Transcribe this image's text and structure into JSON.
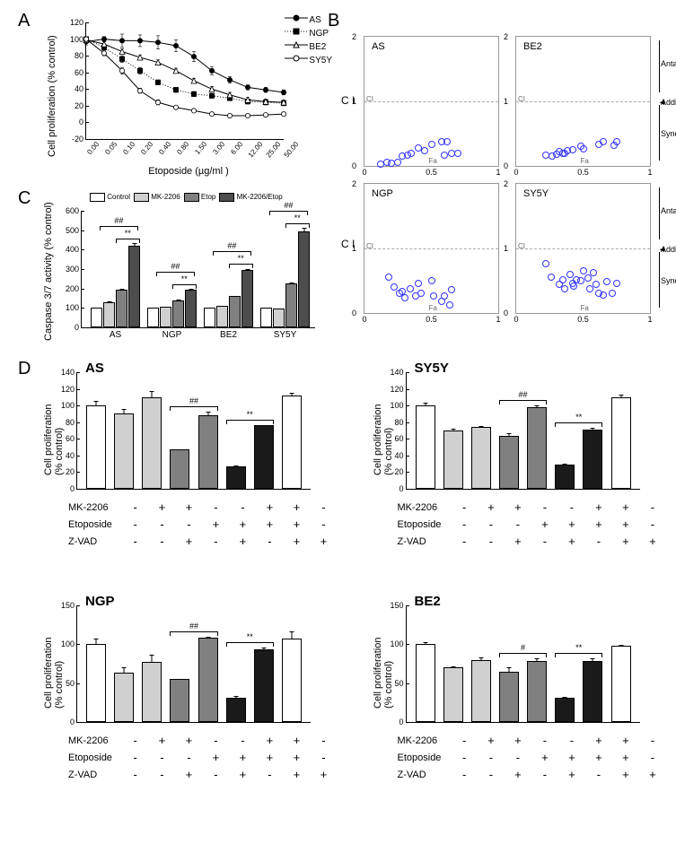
{
  "colors": {
    "white": "#ffffff",
    "lightgray": "#d0d0d0",
    "midgray": "#808080",
    "darkgray": "#4d4d4d",
    "black": "#1a1a1a",
    "blue_marker": "#3333ff"
  },
  "panelA": {
    "label": "A",
    "ylabel": "Cell proliferation (% control)",
    "xlabel": "Etoposide (µg/ml )",
    "ylim": [
      -20,
      120
    ],
    "ytick_step": 20,
    "x_categories": [
      "0.00",
      "0.05",
      "0.10",
      "0.20",
      "0.40",
      "0.80",
      "1.50",
      "3.00",
      "6.00",
      "12.00",
      "25.00",
      "50.00"
    ],
    "series": [
      {
        "name": "AS",
        "marker": "filled-circle",
        "line": "solid",
        "values": [
          97,
          100,
          98,
          98,
          96,
          92,
          79,
          62,
          51,
          42,
          39,
          36
        ],
        "err": [
          4,
          3,
          8,
          7,
          8,
          7,
          6,
          5,
          4,
          3,
          3,
          3
        ]
      },
      {
        "name": "NGP",
        "marker": "filled-square",
        "line": "dotted",
        "values": [
          100,
          90,
          76,
          62,
          48,
          39,
          34,
          32,
          29,
          25,
          24,
          23
        ],
        "err": [
          3,
          3,
          4,
          4,
          3,
          3,
          3,
          3,
          3,
          3,
          3,
          3
        ]
      },
      {
        "name": "BE2",
        "marker": "open-triangle",
        "line": "solid",
        "values": [
          99,
          94,
          85,
          78,
          72,
          62,
          50,
          40,
          33,
          27,
          25,
          24
        ],
        "err": [
          3,
          3,
          3,
          3,
          3,
          3,
          3,
          3,
          3,
          3,
          3,
          3
        ]
      },
      {
        "name": "SY5Y",
        "marker": "open-circle",
        "line": "solid",
        "values": [
          100,
          83,
          62,
          38,
          24,
          18,
          14,
          10,
          8,
          8,
          9,
          10
        ],
        "err": [
          3,
          3,
          4,
          3,
          3,
          2,
          2,
          2,
          2,
          2,
          2,
          2
        ]
      }
    ]
  },
  "panelB": {
    "label": "B",
    "ci_label": "C I",
    "fa_label": "Fa",
    "ylim": [
      0,
      2
    ],
    "xlim": [
      0,
      1
    ],
    "region_labels": [
      "Antagonistic",
      "Additive",
      "Synergistic"
    ],
    "plots": [
      {
        "name": "AS",
        "points": [
          [
            0.12,
            0.03
          ],
          [
            0.17,
            0.06
          ],
          [
            0.2,
            0.04
          ],
          [
            0.25,
            0.05
          ],
          [
            0.28,
            0.15
          ],
          [
            0.32,
            0.17
          ],
          [
            0.35,
            0.2
          ],
          [
            0.4,
            0.28
          ],
          [
            0.45,
            0.24
          ],
          [
            0.5,
            0.34
          ],
          [
            0.58,
            0.37
          ],
          [
            0.6,
            0.16
          ],
          [
            0.62,
            0.38
          ],
          [
            0.65,
            0.2
          ],
          [
            0.7,
            0.2
          ]
        ]
      },
      {
        "name": "BE2",
        "points": [
          [
            0.22,
            0.17
          ],
          [
            0.27,
            0.15
          ],
          [
            0.3,
            0.18
          ],
          [
            0.32,
            0.22
          ],
          [
            0.35,
            0.2
          ],
          [
            0.36,
            0.19
          ],
          [
            0.38,
            0.23
          ],
          [
            0.42,
            0.25
          ],
          [
            0.48,
            0.3
          ],
          [
            0.5,
            0.27
          ],
          [
            0.62,
            0.33
          ],
          [
            0.65,
            0.38
          ],
          [
            0.73,
            0.32
          ],
          [
            0.75,
            0.37
          ]
        ]
      },
      {
        "name": "NGP",
        "points": [
          [
            0.18,
            0.55
          ],
          [
            0.22,
            0.4
          ],
          [
            0.26,
            0.3
          ],
          [
            0.28,
            0.34
          ],
          [
            0.3,
            0.24
          ],
          [
            0.34,
            0.38
          ],
          [
            0.38,
            0.26
          ],
          [
            0.4,
            0.46
          ],
          [
            0.42,
            0.3
          ],
          [
            0.5,
            0.5
          ],
          [
            0.52,
            0.26
          ],
          [
            0.58,
            0.18
          ],
          [
            0.6,
            0.26
          ],
          [
            0.65,
            0.36
          ],
          [
            0.64,
            0.12
          ]
        ]
      },
      {
        "name": "SY5Y",
        "points": [
          [
            0.22,
            0.76
          ],
          [
            0.26,
            0.55
          ],
          [
            0.32,
            0.45
          ],
          [
            0.35,
            0.52
          ],
          [
            0.36,
            0.38
          ],
          [
            0.4,
            0.6
          ],
          [
            0.42,
            0.46
          ],
          [
            0.43,
            0.42
          ],
          [
            0.45,
            0.51
          ],
          [
            0.48,
            0.5
          ],
          [
            0.5,
            0.65
          ],
          [
            0.54,
            0.54
          ],
          [
            0.55,
            0.38
          ],
          [
            0.58,
            0.62
          ],
          [
            0.6,
            0.44
          ],
          [
            0.62,
            0.3
          ],
          [
            0.65,
            0.28
          ],
          [
            0.68,
            0.48
          ],
          [
            0.72,
            0.3
          ],
          [
            0.75,
            0.46
          ]
        ]
      }
    ]
  },
  "panelC": {
    "label": "C",
    "ylabel": "Caspase 3/7 activity (% control)",
    "ylim": [
      0,
      600
    ],
    "ytick_step": 100,
    "legend": [
      "Control",
      "MK-2206",
      "Etop",
      "MK-2206/Etop"
    ],
    "legend_colors": [
      "white",
      "lightgray",
      "midgray",
      "darkgray"
    ],
    "groups": [
      {
        "name": "AS",
        "values": [
          100,
          130,
          195,
          420
        ],
        "err": [
          5,
          8,
          10,
          20
        ],
        "sig_star": "**",
        "sig_hash": "##"
      },
      {
        "name": "NGP",
        "values": [
          100,
          105,
          140,
          195
        ],
        "err": [
          4,
          5,
          6,
          10
        ],
        "sig_star": "**",
        "sig_hash": "##"
      },
      {
        "name": "BE2",
        "values": [
          100,
          110,
          160,
          295
        ],
        "err": [
          4,
          5,
          8,
          12
        ],
        "sig_star": "**",
        "sig_hash": "##"
      },
      {
        "name": "SY5Y",
        "values": [
          100,
          95,
          225,
          495
        ],
        "err": [
          5,
          5,
          12,
          20
        ],
        "sig_star": "**",
        "sig_hash": "##"
      }
    ]
  },
  "panelD": {
    "label": "D",
    "ylabel": "Cell proliferation\n(% control)",
    "condition_rows": [
      "MK-2206",
      "Etoposide",
      "Z-VAD"
    ],
    "condition_cols": [
      [
        "-",
        "-",
        "-"
      ],
      [
        "+",
        "-",
        "-"
      ],
      [
        "+",
        "-",
        "+"
      ],
      [
        "-",
        "+",
        "-"
      ],
      [
        "-",
        "+",
        "+"
      ],
      [
        "+",
        "+",
        "-"
      ],
      [
        "+",
        "+",
        "+"
      ],
      [
        "-",
        "-",
        "+"
      ]
    ],
    "bar_colors": [
      "white",
      "lightgray",
      "lightgray",
      "midgray",
      "midgray",
      "black",
      "black",
      "white"
    ],
    "plots": [
      {
        "name": "AS",
        "ylim": [
          0,
          140
        ],
        "ytick_step": 20,
        "values": [
          100,
          90,
          110,
          47,
          88,
          27,
          76,
          112
        ],
        "err": [
          7,
          7,
          8,
          2,
          6,
          2,
          2,
          4
        ],
        "sig": [
          {
            "i": 3,
            "j": 4,
            "label": "##"
          },
          {
            "i": 5,
            "j": 6,
            "label": "**"
          }
        ]
      },
      {
        "name": "SY5Y",
        "ylim": [
          0,
          140
        ],
        "ytick_step": 20,
        "values": [
          100,
          70,
          74,
          64,
          98,
          29,
          71,
          110
        ],
        "err": [
          5,
          3,
          2,
          4,
          3,
          2,
          3,
          4
        ],
        "sig": [
          {
            "i": 3,
            "j": 4,
            "label": "##"
          },
          {
            "i": 5,
            "j": 6,
            "label": "**"
          }
        ]
      },
      {
        "name": "NGP",
        "ylim": [
          0,
          150
        ],
        "ytick_step": 50,
        "values": [
          100,
          64,
          77,
          55,
          108,
          31,
          93,
          107
        ],
        "err": [
          8,
          8,
          11,
          2,
          3,
          4,
          4,
          11
        ],
        "sig": [
          {
            "i": 3,
            "j": 4,
            "label": "##"
          },
          {
            "i": 5,
            "j": 6,
            "label": "**"
          }
        ]
      },
      {
        "name": "BE2",
        "ylim": [
          0,
          150
        ],
        "ytick_step": 50,
        "values": [
          100,
          70,
          80,
          65,
          79,
          31,
          79,
          98
        ],
        "err": [
          4,
          3,
          4,
          7,
          4,
          2,
          4,
          2
        ],
        "sig": [
          {
            "i": 3,
            "j": 4,
            "label": "#"
          },
          {
            "i": 5,
            "j": 6,
            "label": "**"
          }
        ]
      }
    ]
  }
}
